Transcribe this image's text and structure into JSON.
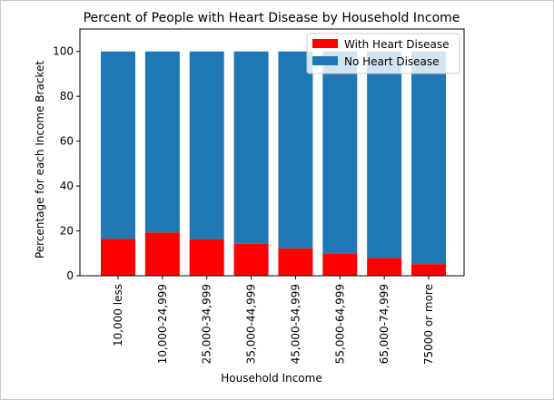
{
  "chart_data": {
    "type": "bar",
    "stacked": true,
    "title": "Percent of People with Heart Disease by Household Income",
    "xlabel": "Household Income",
    "ylabel": "Percentage for each Income Bracket",
    "categories": [
      "10,000 less",
      "10,000-24,999",
      "25,000-34,999",
      "35,000-44,999",
      "45,000-54,999",
      "55,000-64,999",
      "65,000-74,999",
      "75000 or more"
    ],
    "series": [
      {
        "name": "With Heart Disease",
        "color": "#ff0000",
        "values": [
          16.4,
          19.3,
          16.2,
          14.2,
          12.2,
          10.0,
          8.0,
          5.2
        ]
      },
      {
        "name": "No Heart Disease",
        "color": "#1f77b4",
        "values": [
          83.6,
          80.7,
          83.8,
          85.8,
          87.8,
          90.0,
          92.0,
          94.8
        ]
      }
    ],
    "ylim": [
      0,
      110
    ],
    "yticks": [
      0,
      20,
      40,
      60,
      80,
      100
    ],
    "grid": false,
    "legend_position": "top-right"
  }
}
